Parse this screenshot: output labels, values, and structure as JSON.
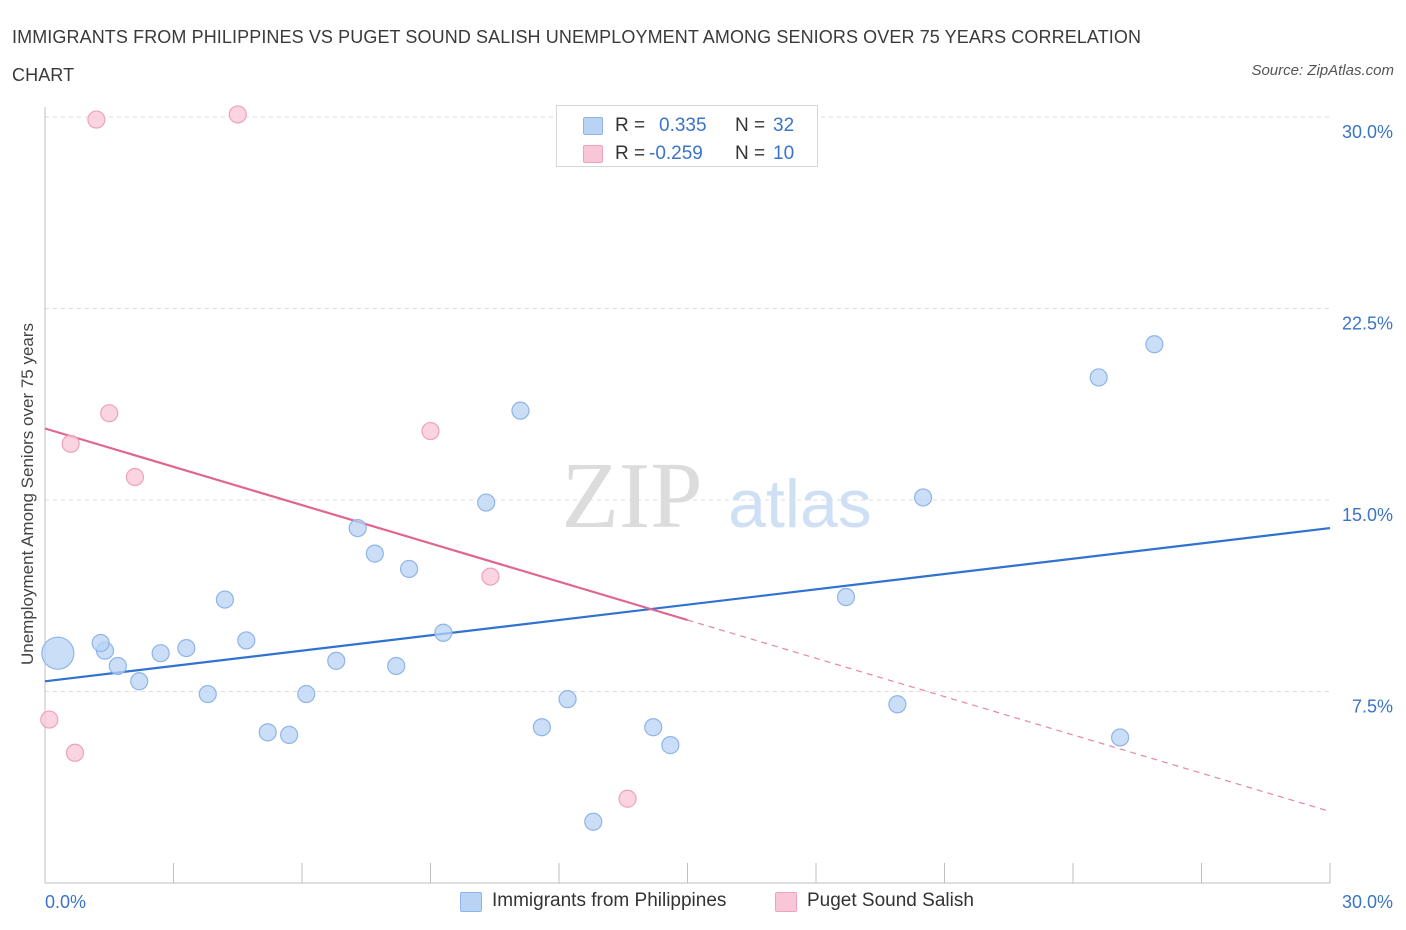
{
  "title": "IMMIGRANTS FROM PHILIPPINES VS PUGET SOUND SALISH UNEMPLOYMENT AMONG SENIORS OVER 75 YEARS CORRELATION CHART",
  "source": "Source: ZipAtlas.com",
  "watermark": {
    "zip": "ZIP",
    "atlas": "atlas"
  },
  "legend": {
    "row1": {
      "r_label": "R =",
      "r_value": "0.335",
      "n_label": "N =",
      "n_value": "32"
    },
    "row2": {
      "r_label": "R =",
      "r_value": "-0.259",
      "n_label": "N =",
      "n_value": "10"
    }
  },
  "colors": {
    "blue_fill": "#b9d3f5",
    "blue_stroke": "#8fb4e6",
    "blue_line": "#2f72d0",
    "pink_fill": "#f8c6d6",
    "pink_stroke": "#eea2bb",
    "pink_line": "#e06690",
    "axis_text": "#3a74c9",
    "grid": "#dddddd"
  },
  "chart_data": {
    "type": "scatter",
    "xlabel": "",
    "ylabel": "Unemployment Among Seniors over 75 years",
    "xlim": [
      0,
      30
    ],
    "ylim": [
      0,
      30
    ],
    "x_tick_labels": [
      "0.0%",
      "30.0%"
    ],
    "y_ticks": [
      7.5,
      15.0,
      22.5,
      30.0
    ],
    "y_tick_labels": [
      "7.5%",
      "15.0%",
      "22.5%",
      "30.0%"
    ],
    "grid": true,
    "series": [
      {
        "name": "Immigrants from Philippines",
        "color": "blue",
        "R": 0.335,
        "N": 32,
        "trend": {
          "x0": 0,
          "y0": 7.9,
          "x1": 30,
          "y1": 13.9
        },
        "points": [
          {
            "x": 0.3,
            "y": 9.0,
            "size": "large"
          },
          {
            "x": 1.4,
            "y": 9.1
          },
          {
            "x": 1.3,
            "y": 9.4
          },
          {
            "x": 1.7,
            "y": 8.5
          },
          {
            "x": 2.2,
            "y": 7.9
          },
          {
            "x": 2.7,
            "y": 9.0
          },
          {
            "x": 3.3,
            "y": 9.2
          },
          {
            "x": 3.8,
            "y": 7.4
          },
          {
            "x": 4.2,
            "y": 11.1
          },
          {
            "x": 4.7,
            "y": 9.5
          },
          {
            "x": 5.2,
            "y": 5.9
          },
          {
            "x": 5.7,
            "y": 5.8
          },
          {
            "x": 6.1,
            "y": 7.4
          },
          {
            "x": 6.8,
            "y": 8.7
          },
          {
            "x": 7.3,
            "y": 13.9
          },
          {
            "x": 7.7,
            "y": 12.9
          },
          {
            "x": 8.2,
            "y": 8.5
          },
          {
            "x": 8.5,
            "y": 12.3
          },
          {
            "x": 9.3,
            "y": 9.8
          },
          {
            "x": 10.3,
            "y": 14.9
          },
          {
            "x": 11.1,
            "y": 18.5
          },
          {
            "x": 11.6,
            "y": 6.1
          },
          {
            "x": 12.2,
            "y": 7.2
          },
          {
            "x": 12.8,
            "y": 2.4
          },
          {
            "x": 14.2,
            "y": 6.1
          },
          {
            "x": 14.6,
            "y": 5.4
          },
          {
            "x": 18.7,
            "y": 11.2
          },
          {
            "x": 19.9,
            "y": 7.0
          },
          {
            "x": 20.5,
            "y": 15.1
          },
          {
            "x": 24.6,
            "y": 19.8
          },
          {
            "x": 25.1,
            "y": 5.7
          },
          {
            "x": 25.9,
            "y": 21.1
          }
        ]
      },
      {
        "name": "Puget Sound Salish",
        "color": "pink",
        "R": -0.259,
        "N": 10,
        "trend": {
          "x0": 0,
          "y0": 17.8,
          "x1": 15.0,
          "y1": 10.3,
          "dash_to_x": 30,
          "dash_to_y": 2.8
        },
        "points": [
          {
            "x": 0.1,
            "y": 6.4
          },
          {
            "x": 0.6,
            "y": 17.2
          },
          {
            "x": 0.7,
            "y": 5.1
          },
          {
            "x": 1.2,
            "y": 29.9
          },
          {
            "x": 1.5,
            "y": 18.4
          },
          {
            "x": 2.1,
            "y": 15.9
          },
          {
            "x": 4.5,
            "y": 30.1
          },
          {
            "x": 9.0,
            "y": 17.7
          },
          {
            "x": 10.4,
            "y": 12.0
          },
          {
            "x": 13.6,
            "y": 3.3
          }
        ]
      }
    ]
  }
}
